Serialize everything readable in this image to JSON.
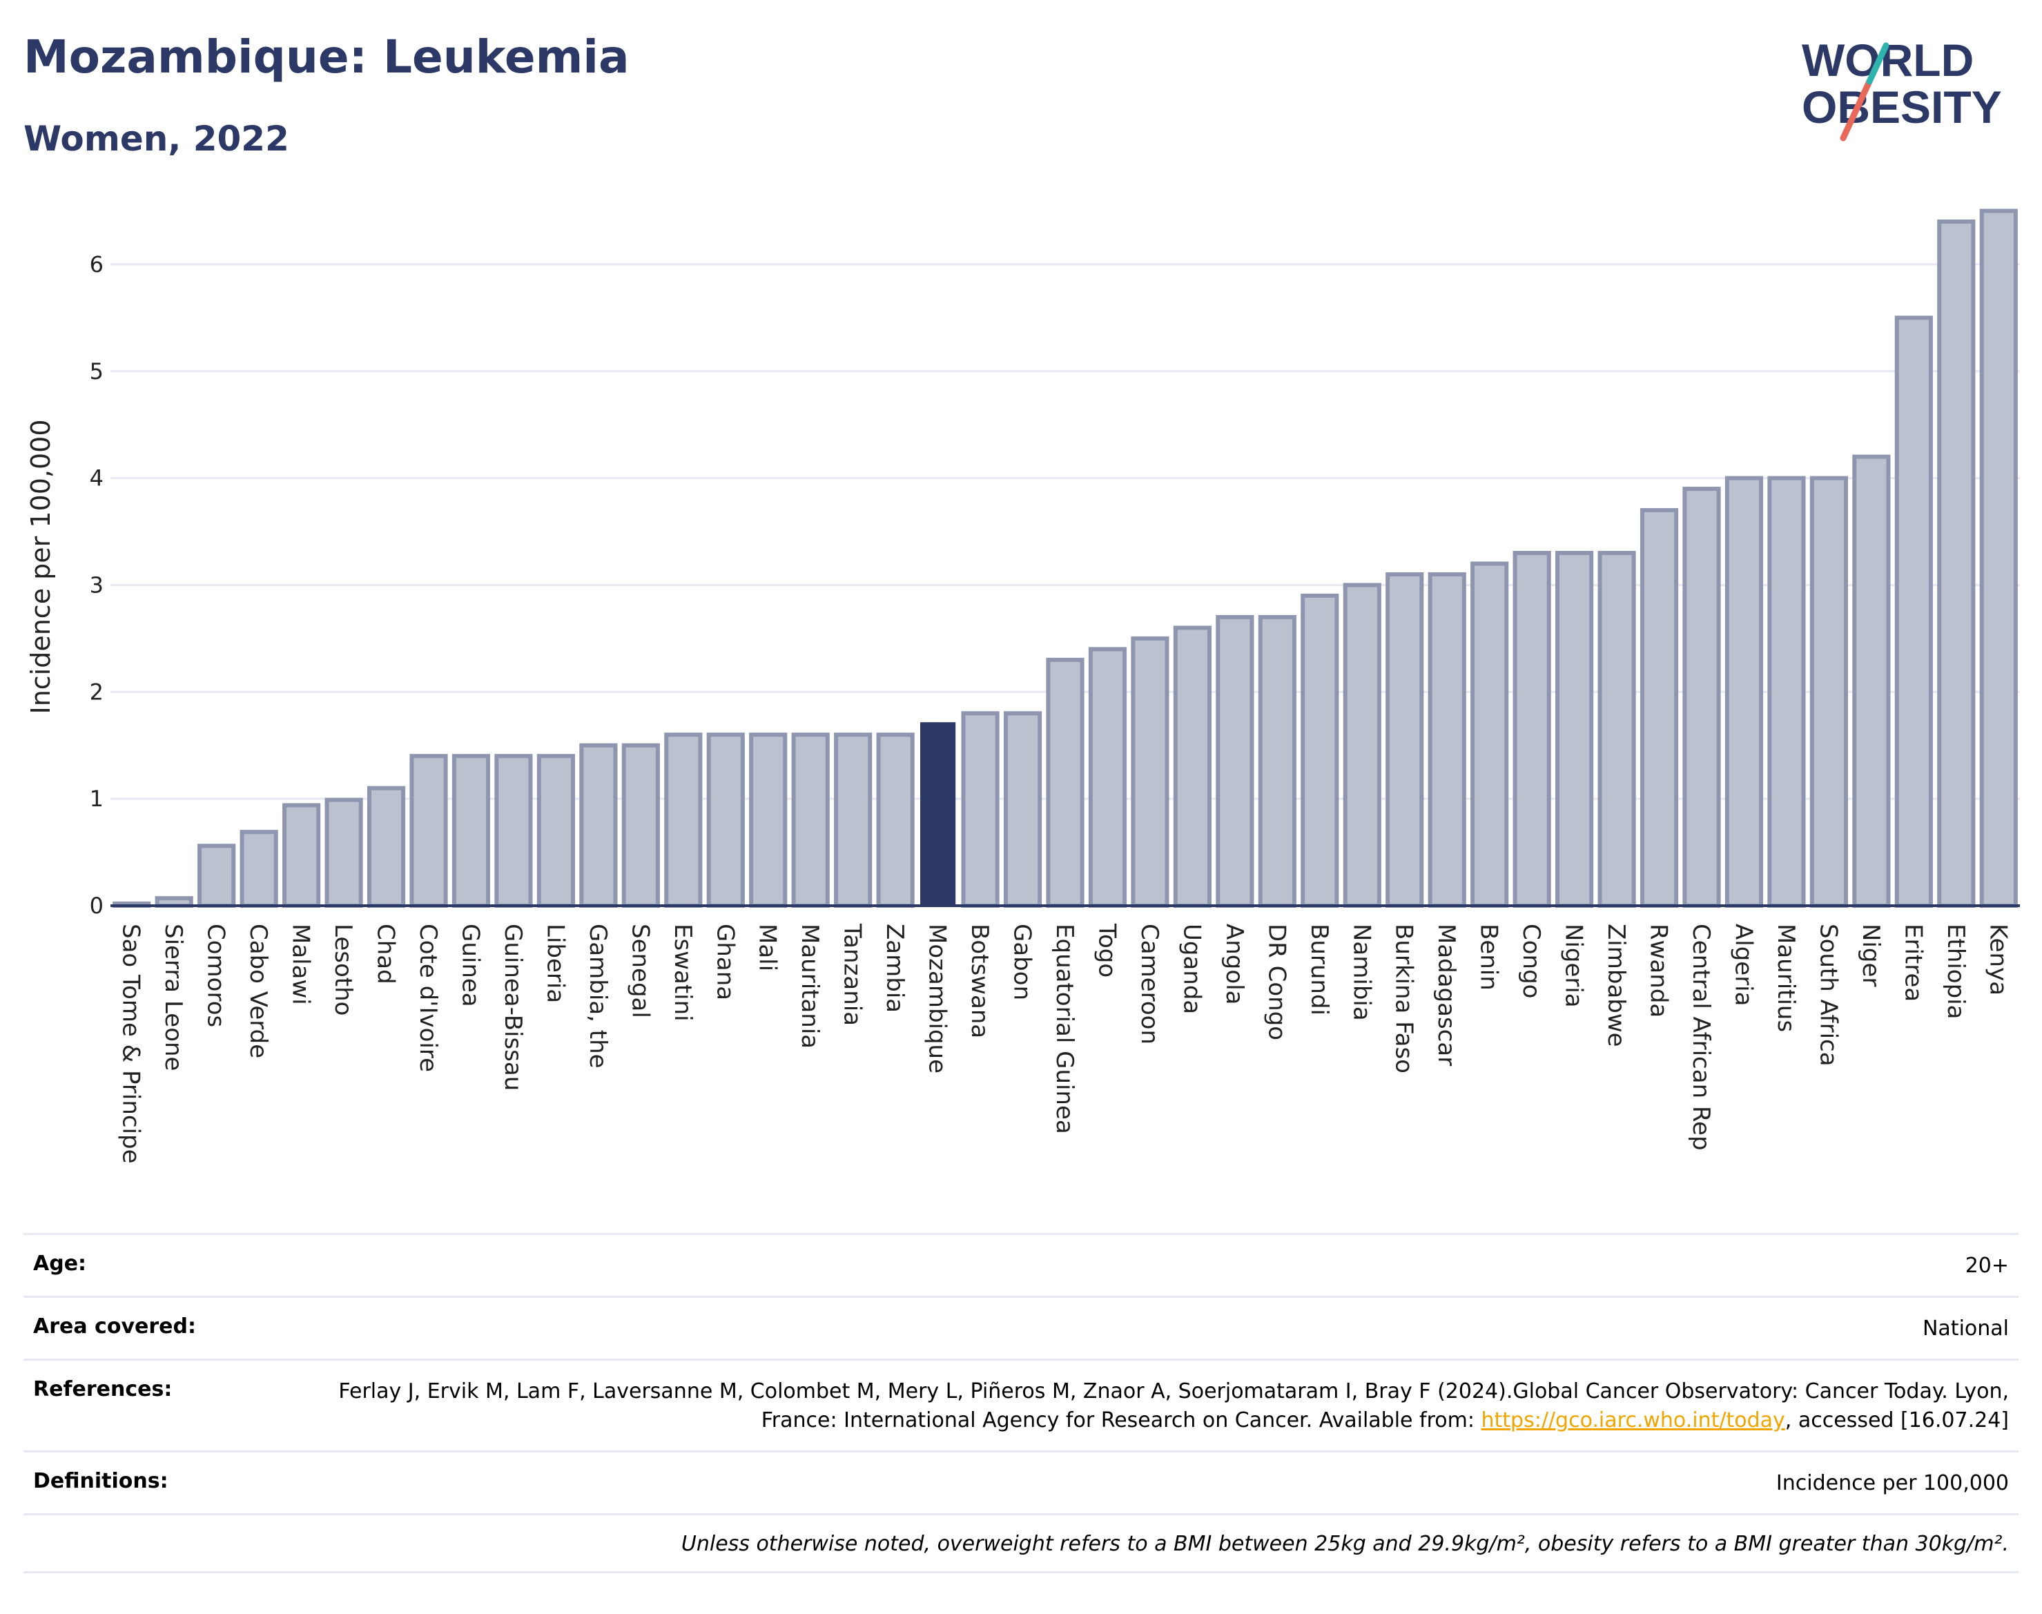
{
  "header": {
    "title": "Mozambique: Leukemia",
    "subtitle": "Women, 2022"
  },
  "logo": {
    "line1": "WORLD",
    "line2": "OBESITY"
  },
  "chart_data": {
    "type": "bar",
    "ylabel": "Incidence per 100,000",
    "ylim": [
      0,
      6.6
    ],
    "yticks": [
      0,
      1,
      2,
      3,
      4,
      5,
      6
    ],
    "grid": true,
    "highlight": "Mozambique",
    "colors": {
      "bar": "#bcc1d0",
      "bar_edge": "#8e95ae",
      "highlight": "#2c3866",
      "grid": "#e6e9f2",
      "axis": "#2c3866"
    },
    "categories": [
      "Sao Tome & Principe",
      "Sierra Leone",
      "Comoros",
      "Cabo Verde",
      "Malawi",
      "Lesotho",
      "Chad",
      "Cote d'Ivoire",
      "Guinea",
      "Guinea-Bissau",
      "Liberia",
      "Gambia, the",
      "Senegal",
      "Eswatini",
      "Ghana",
      "Mali",
      "Mauritania",
      "Tanzania",
      "Zambia",
      "Mozambique",
      "Botswana",
      "Gabon",
      "Equatorial Guinea",
      "Togo",
      "Cameroon",
      "Uganda",
      "Angola",
      "DR Congo",
      "Burundi",
      "Namibia",
      "Burkina Faso",
      "Madagascar",
      "Benin",
      "Congo",
      "Nigeria",
      "Zimbabwe",
      "Rwanda",
      "Central African Rep",
      "Algeria",
      "Mauritius",
      "South Africa",
      "Niger",
      "Eritrea",
      "Ethiopia",
      "Kenya"
    ],
    "values": [
      0.02,
      0.07,
      0.56,
      0.69,
      0.94,
      0.99,
      1.1,
      1.4,
      1.4,
      1.4,
      1.4,
      1.5,
      1.5,
      1.6,
      1.6,
      1.6,
      1.6,
      1.6,
      1.6,
      1.71,
      1.8,
      1.8,
      2.3,
      2.4,
      2.5,
      2.6,
      2.7,
      2.7,
      2.9,
      3.0,
      3.1,
      3.1,
      3.2,
      3.3,
      3.3,
      3.3,
      3.7,
      3.9,
      4.0,
      4.0,
      4.0,
      4.2,
      5.5,
      6.4,
      6.5
    ]
  },
  "info": {
    "age_label": "Age:",
    "age_value": "20+",
    "area_label": "Area covered:",
    "area_value": "National",
    "references_label": "References:",
    "references_text": "Ferlay J, Ervik M, Lam F, Laversanne M, Colombet M, Mery L, Piñeros M, Znaor A, Soerjomataram I, Bray F (2024).Global Cancer Observatory: Cancer Today. Lyon, France: International Agency for Research on Cancer. Available from: ",
    "references_link": "https://gco.iarc.who.int/today",
    "references_tail": ", accessed [16.07.24]",
    "definitions_label": "Definitions:",
    "definitions_value": "Incidence per 100,000",
    "note": "Unless otherwise noted, overweight refers to a BMI between 25kg and 29.9kg/m², obesity refers to a BMI greater than 30kg/m²."
  }
}
